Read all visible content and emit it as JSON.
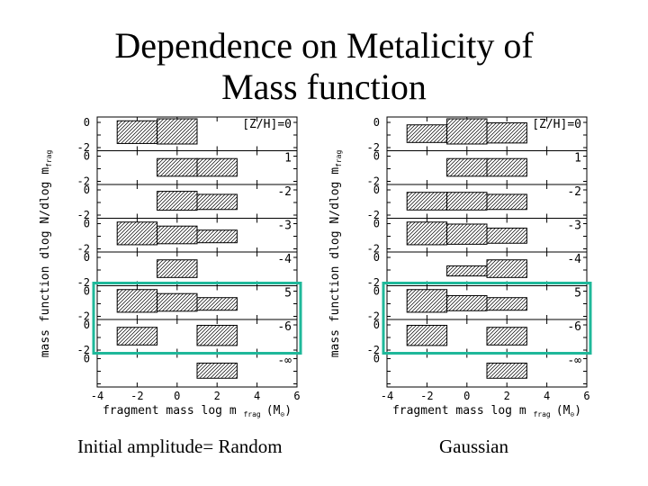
{
  "title_line1": "Dependence on Metalicity of",
  "title_line2": "Mass function",
  "ylabel": "mass function dlog N/dlog m",
  "ylabel_sub": "frag",
  "xlabel_main": "fragment mass log m",
  "xlabel_sub": "frag",
  "xlabel_unit_open": "(M",
  "xlabel_unit_sun": "⊙",
  "xlabel_unit_close": ")",
  "ytick_rows": [
    [
      "0",
      "-2"
    ],
    [
      "0",
      "-2"
    ],
    [
      "0",
      "-2"
    ],
    [
      "0",
      "-2"
    ],
    [
      "0",
      "-2"
    ],
    [
      "0",
      "-2"
    ],
    [
      "0",
      "-2"
    ]
  ],
  "caption_left": "Initial amplitude= Random",
  "caption_right": "Gaussian",
  "highlight_color": "#1fb89a",
  "chart_data": [
    {
      "type": "bar",
      "panel": "left",
      "xlim": [
        -4,
        6
      ],
      "xticks": [
        -4,
        -2,
        0,
        2,
        4,
        6
      ],
      "bin_width": 2,
      "rows": [
        {
          "label": "[Z/H]=0",
          "bars": [
            {
              "x": -2,
              "y": -0.2
            },
            {
              "x": 0,
              "y": 0
            }
          ]
        },
        {
          "label": "1",
          "bars": [
            {
              "x": 0,
              "y": -0.6
            },
            {
              "x": 2,
              "y": -0.6
            }
          ]
        },
        {
          "label": "-2",
          "bars": [
            {
              "x": 0,
              "y": -0.5
            },
            {
              "x": 2,
              "y": -0.8
            }
          ]
        },
        {
          "label": "-3",
          "bars": [
            {
              "x": -2,
              "y": -0.2
            },
            {
              "x": 0,
              "y": -0.6
            },
            {
              "x": 2,
              "y": -1.0
            }
          ]
        },
        {
          "label": "-4",
          "bars": [
            {
              "x": 0,
              "y": -0.6
            }
          ]
        },
        {
          "label": "5",
          "bars": [
            {
              "x": -2,
              "y": -0.2
            },
            {
              "x": 0,
              "y": -0.6
            },
            {
              "x": 2,
              "y": -1.0
            }
          ]
        },
        {
          "label": "-6",
          "bars": [
            {
              "x": -2,
              "y": -0.6
            },
            {
              "x": 2,
              "y": -0.4
            }
          ]
        },
        {
          "label": "-∞",
          "bars": [
            {
              "x": 2,
              "y": -0.8
            }
          ]
        }
      ]
    },
    {
      "type": "bar",
      "panel": "right",
      "xlim": [
        -4,
        6
      ],
      "xticks": [
        -4,
        -2,
        0,
        2,
        4,
        6
      ],
      "bin_width": 2,
      "rows": [
        {
          "label": "[Z/H]=0",
          "bars": [
            {
              "x": -2,
              "y": -0.6
            },
            {
              "x": 0,
              "y": 0
            },
            {
              "x": 2,
              "y": -0.4
            }
          ]
        },
        {
          "label": "1",
          "bars": [
            {
              "x": 0,
              "y": -0.6
            },
            {
              "x": 2,
              "y": -0.6
            }
          ]
        },
        {
          "label": "-2",
          "bars": [
            {
              "x": -2,
              "y": -0.6
            },
            {
              "x": 0,
              "y": -0.6
            },
            {
              "x": 2,
              "y": -0.8
            }
          ]
        },
        {
          "label": "-3",
          "bars": [
            {
              "x": -2,
              "y": -0.2
            },
            {
              "x": 0,
              "y": -0.4
            },
            {
              "x": 2,
              "y": -0.8
            }
          ]
        },
        {
          "label": "-4",
          "bars": [
            {
              "x": 0,
              "y": -1.2
            },
            {
              "x": 2,
              "y": -0.6
            }
          ]
        },
        {
          "label": "5",
          "bars": [
            {
              "x": -2,
              "y": -0.2
            },
            {
              "x": 0,
              "y": -0.8
            },
            {
              "x": 2,
              "y": -1.0
            }
          ]
        },
        {
          "label": "-6",
          "bars": [
            {
              "x": -2,
              "y": -0.4
            },
            {
              "x": 2,
              "y": -0.6
            }
          ]
        },
        {
          "label": "-∞",
          "bars": [
            {
              "x": 2,
              "y": -0.8
            }
          ]
        }
      ]
    }
  ]
}
